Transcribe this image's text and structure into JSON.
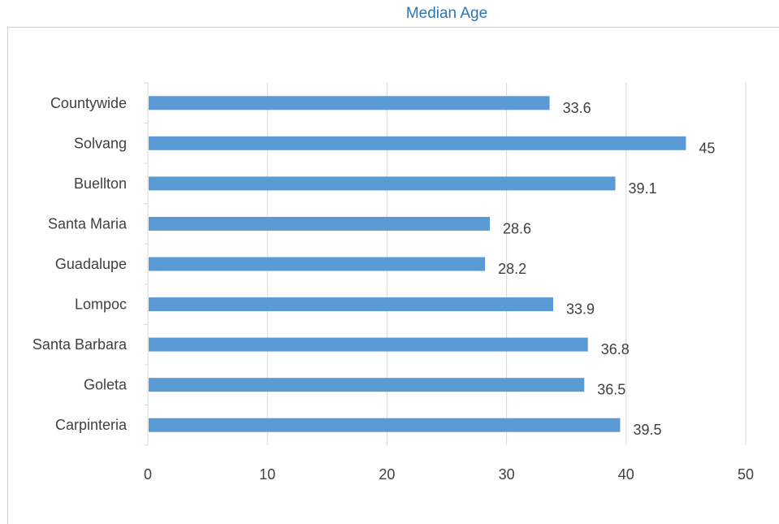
{
  "chart_data": {
    "type": "bar",
    "orientation": "horizontal",
    "title": "Median Age",
    "categories": [
      "Countywide",
      "Solvang",
      "Buellton",
      "Santa Maria",
      "Guadalupe",
      "Lompoc",
      "Santa Barbara",
      "Goleta",
      "Carpinteria"
    ],
    "values": [
      33.6,
      45,
      39.1,
      28.6,
      28.2,
      33.9,
      36.8,
      36.5,
      39.5
    ],
    "value_labels": [
      "33.6",
      "45",
      "39.1",
      "28.6",
      "28.2",
      "33.9",
      "36.8",
      "36.5",
      "39.5"
    ],
    "xlim": [
      0,
      50
    ],
    "xticks": [
      "0",
      "10",
      "20",
      "30",
      "40",
      "50"
    ],
    "xlabel": "",
    "ylabel": "",
    "grid": "vertical",
    "legend": "none",
    "bar_color": "#5b9bd5",
    "grid_color": "#d9d9d9",
    "title_color": "#2e75b6"
  }
}
